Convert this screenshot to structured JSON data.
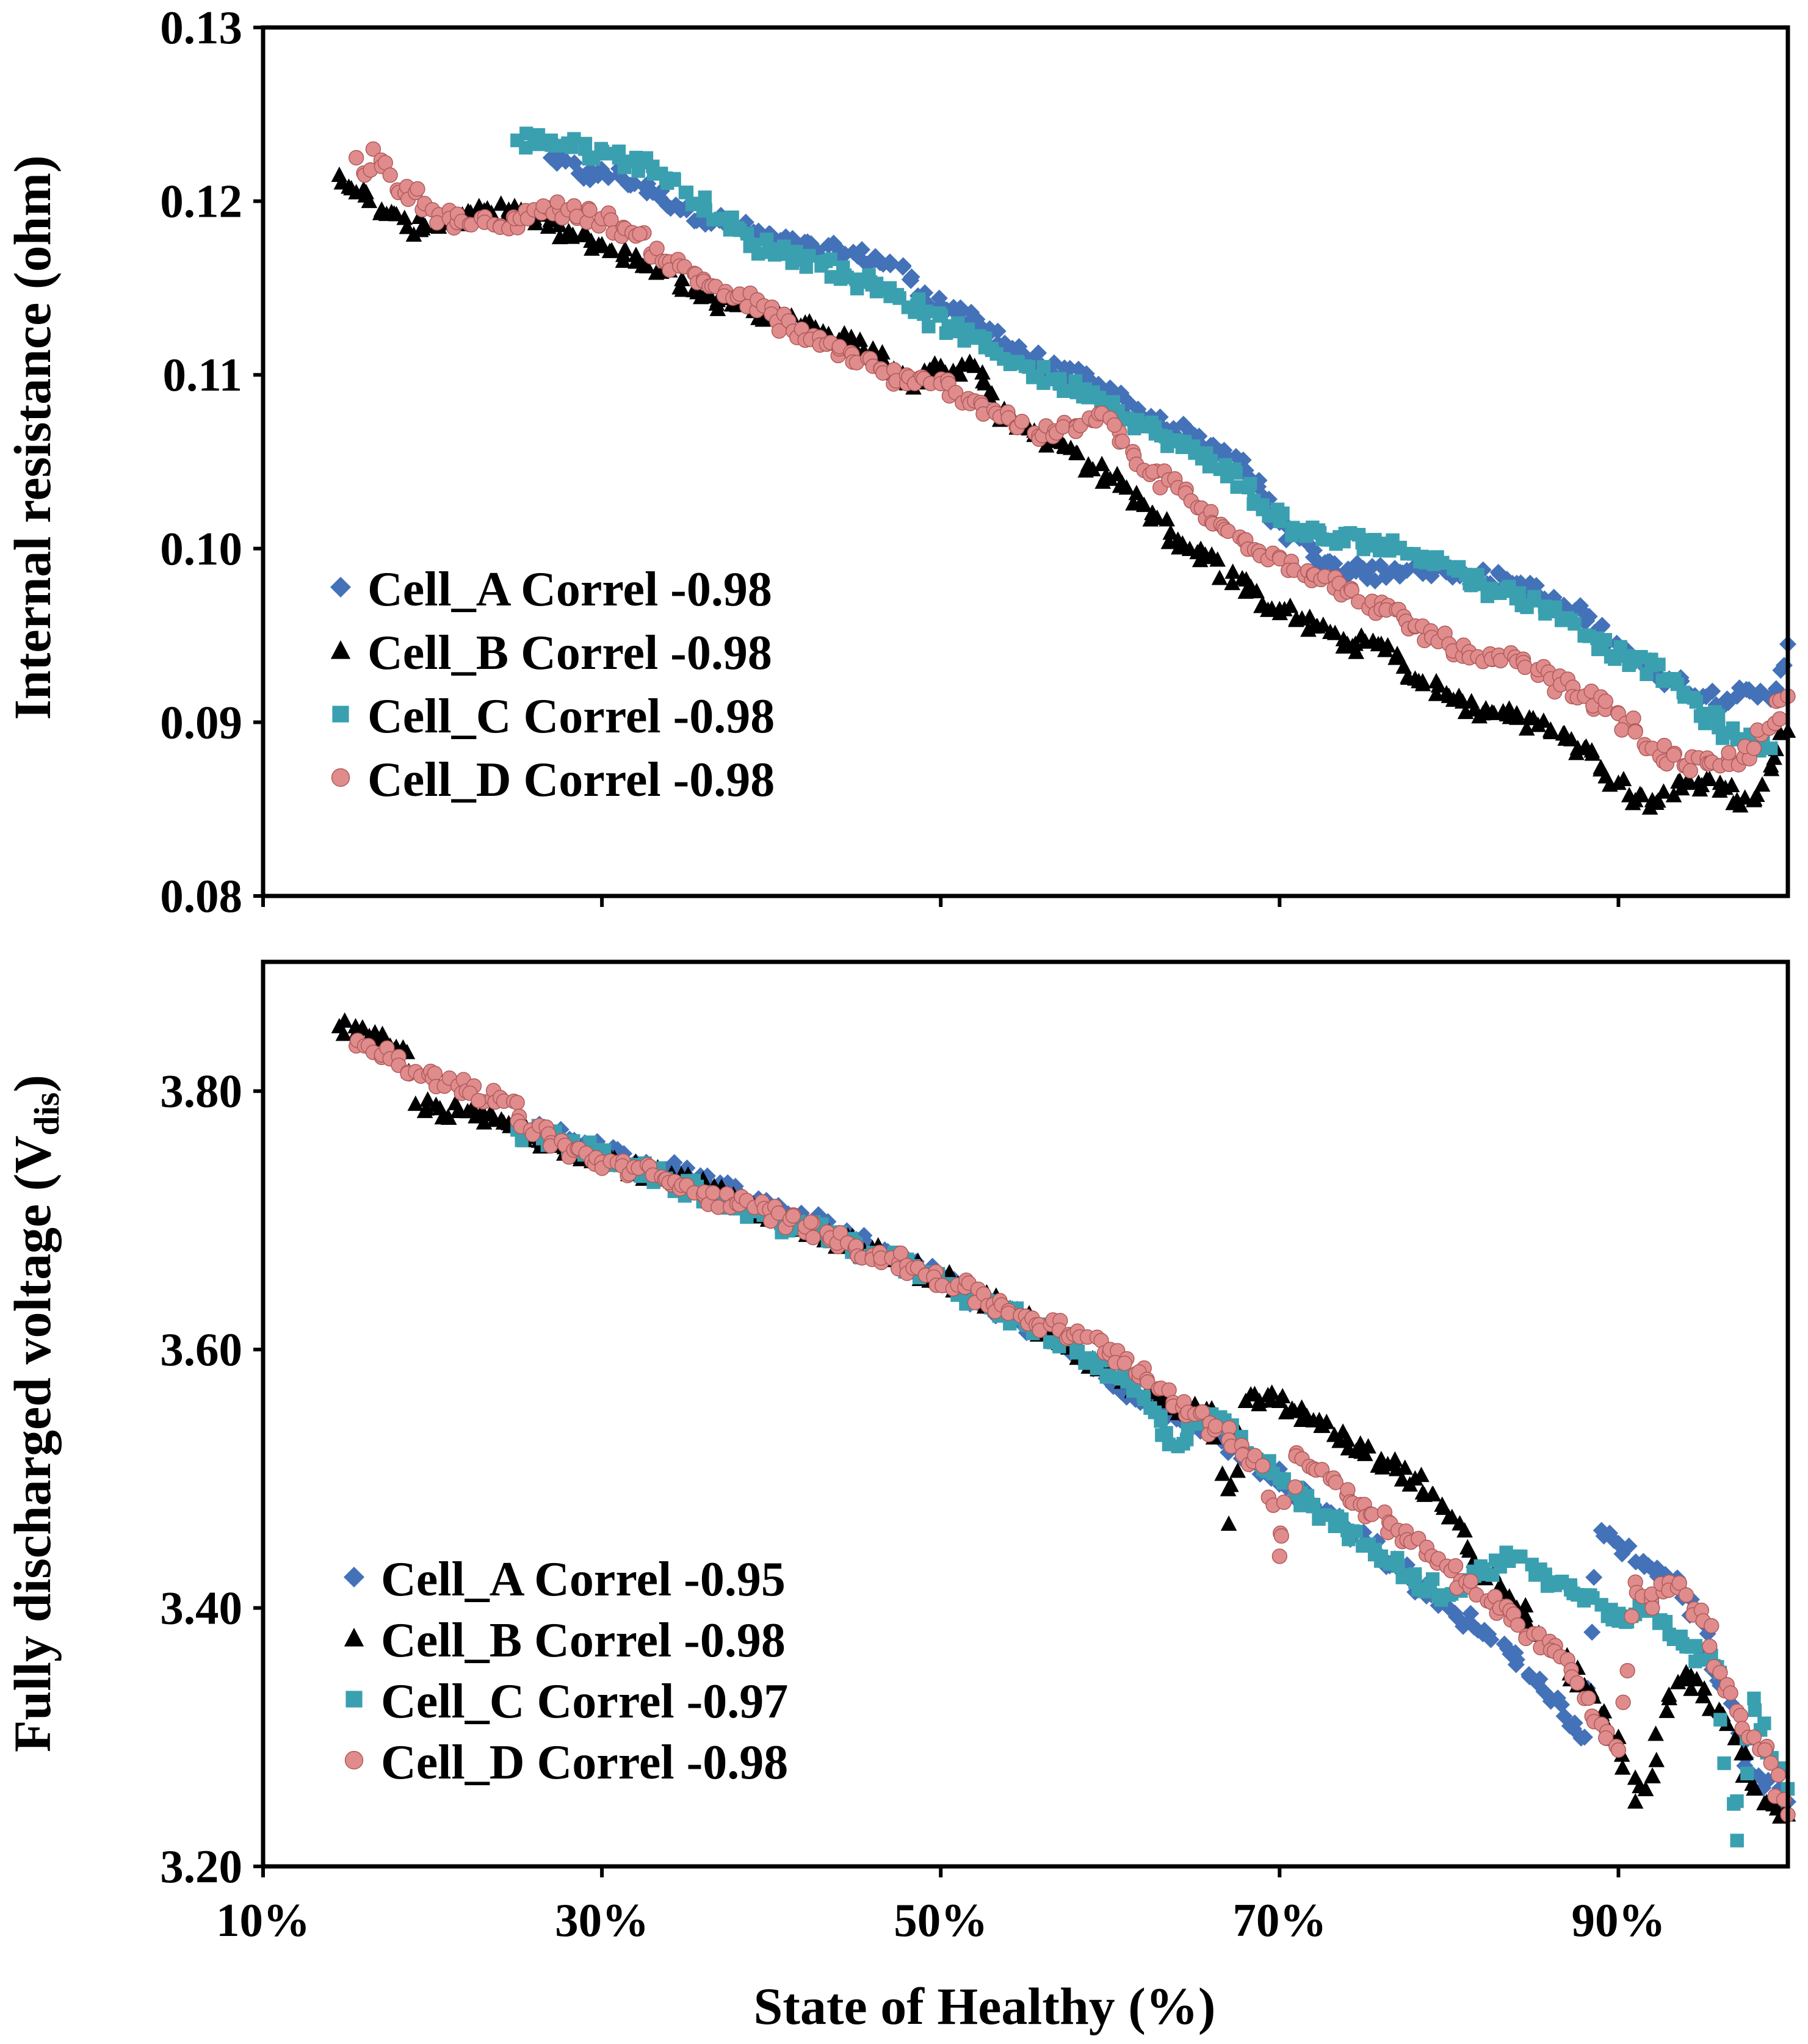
{
  "colors": {
    "Cell_A": "#4472B8",
    "Cell_B": "#000000",
    "Cell_C": "#3AA0B0",
    "Cell_D": "#E08C8C",
    "Cell_D_edge": "#B05A5A"
  },
  "chart_data": [
    {
      "type": "scatter",
      "xlabel": "",
      "ylabel": "Internal resistance (ohm)",
      "xlim": [
        10,
        100
      ],
      "ylim": [
        0.08,
        0.13
      ],
      "x_ticks": [
        10,
        30,
        50,
        70,
        90
      ],
      "y_ticks": [
        0.08,
        0.09,
        0.1,
        0.11,
        0.12,
        0.13
      ],
      "y_tick_labels": [
        "0.08",
        "0.09",
        "0.10",
        "0.11",
        "0.12",
        "0.13"
      ],
      "grid": false,
      "legend_position": "lower-left",
      "legend": [
        {
          "label": "Cell_A  Correl -0.98",
          "marker": "diamond",
          "color": "#4472B8"
        },
        {
          "label": "Cell_B  Correl -0.98",
          "marker": "triangle",
          "color": "#000000"
        },
        {
          "label": "Cell_C  Correl -0.98",
          "marker": "square",
          "color": "#3AA0B0"
        },
        {
          "label": "Cell_D  Correl -0.98",
          "marker": "circle",
          "color": "#E08C8C"
        }
      ],
      "series": [
        {
          "name": "Cell_A  Correl -0.98",
          "marker": "diamond",
          "x": [
            27,
            29,
            31,
            33,
            35,
            38,
            41,
            44,
            47,
            50,
            53,
            56,
            59,
            62,
            65,
            68,
            70,
            72,
            75,
            78,
            81,
            84,
            87,
            89,
            91,
            93,
            95,
            97,
            99,
            100
          ],
          "y": [
            0.1225,
            0.1215,
            0.1215,
            0.1205,
            0.1195,
            0.1185,
            0.1175,
            0.117,
            0.1165,
            0.114,
            0.1125,
            0.1105,
            0.1095,
            0.1075,
            0.1065,
            0.1045,
            0.1015,
            0.0995,
            0.0985,
            0.099,
            0.0985,
            0.098,
            0.0965,
            0.0955,
            0.0935,
            0.0925,
            0.0915,
            0.0915,
            0.0915,
            0.0945
          ]
        },
        {
          "name": "Cell_B  Correl -0.98",
          "marker": "triangle",
          "x": [
            14.5,
            15.5,
            17,
            18.5,
            24.5,
            26,
            28,
            30,
            32,
            34,
            36,
            38,
            40,
            42,
            44,
            46,
            48,
            50,
            52,
            54,
            56,
            58,
            60,
            62,
            64,
            66,
            68,
            70,
            72,
            74,
            76,
            78,
            80,
            82,
            84,
            86,
            88,
            90,
            91,
            92,
            94,
            96,
            97,
            98,
            99,
            100
          ],
          "y": [
            0.1215,
            0.1205,
            0.1195,
            0.1185,
            0.1195,
            0.119,
            0.118,
            0.1175,
            0.1165,
            0.116,
            0.1145,
            0.114,
            0.1135,
            0.113,
            0.112,
            0.1115,
            0.1095,
            0.1105,
            0.1105,
            0.1075,
            0.1065,
            0.1055,
            0.104,
            0.1025,
            0.1005,
            0.0995,
            0.0975,
            0.0965,
            0.0955,
            0.0945,
            0.0945,
            0.0925,
            0.0915,
            0.0905,
            0.0905,
            0.0895,
            0.0885,
            0.0865,
            0.0855,
            0.0855,
            0.0865,
            0.0865,
            0.0855,
            0.0855,
            0.0875,
            0.0895
          ]
        },
        {
          "name": "Cell_C  Correl -0.98",
          "marker": "square",
          "x": [
            25,
            27,
            29,
            31,
            33,
            35,
            37,
            39,
            41,
            43,
            45,
            47,
            49,
            51,
            53,
            55,
            57,
            59,
            61,
            63,
            65,
            67,
            69,
            71,
            73,
            75,
            77,
            79,
            81,
            83,
            85,
            87,
            89,
            91,
            93,
            95,
            97,
            99
          ],
          "y": [
            0.1235,
            0.1235,
            0.123,
            0.1225,
            0.122,
            0.1205,
            0.119,
            0.1175,
            0.117,
            0.1165,
            0.1155,
            0.115,
            0.1135,
            0.1125,
            0.1115,
            0.1105,
            0.1095,
            0.109,
            0.1075,
            0.1065,
            0.1055,
            0.1045,
            0.1025,
            0.101,
            0.1005,
            0.1005,
            0.1,
            0.0995,
            0.0985,
            0.0975,
            0.097,
            0.096,
            0.0945,
            0.0935,
            0.0925,
            0.0905,
            0.089,
            0.0885
          ]
        },
        {
          "name": "Cell_D  Correl -0.98",
          "marker": "circle",
          "x": [
            15.5,
            16,
            16.5,
            17,
            17.5,
            18,
            19,
            20,
            21,
            24,
            26,
            28,
            30,
            32,
            34,
            36,
            38,
            40,
            42,
            44,
            46,
            48,
            50,
            52,
            54,
            56,
            58,
            60,
            62,
            64,
            66,
            68,
            70,
            72,
            74,
            76,
            78,
            80,
            82,
            84,
            86,
            88,
            90,
            91,
            92,
            94,
            96,
            98,
            100
          ],
          "y": [
            0.1225,
            0.1215,
            0.123,
            0.122,
            0.1215,
            0.1205,
            0.1205,
            0.1195,
            0.119,
            0.1185,
            0.1195,
            0.1195,
            0.119,
            0.118,
            0.1165,
            0.1155,
            0.1145,
            0.1135,
            0.112,
            0.1115,
            0.1105,
            0.1095,
            0.1095,
            0.1085,
            0.1075,
            0.1065,
            0.107,
            0.1075,
            0.1045,
            0.1035,
            0.1015,
            0.1005,
            0.0995,
            0.0985,
            0.0975,
            0.0965,
            0.0955,
            0.0945,
            0.0935,
            0.0935,
            0.0925,
            0.0915,
            0.0905,
            0.0895,
            0.0885,
            0.0875,
            0.0875,
            0.0885,
            0.0915
          ]
        }
      ]
    },
    {
      "type": "scatter",
      "xlabel": "State of Healthy (%)",
      "ylabel_main": "Fully discharged voltage (V",
      "ylabel_sub": "dis",
      "ylabel_end": ")",
      "xlim": [
        10,
        100
      ],
      "ylim": [
        3.2,
        3.9
      ],
      "x_ticks": [
        10,
        30,
        50,
        70,
        90
      ],
      "x_tick_labels": [
        "10%",
        "30%",
        "50%",
        "70%",
        "90%"
      ],
      "y_ticks": [
        3.2,
        3.4,
        3.6,
        3.8
      ],
      "y_tick_labels": [
        "3.20",
        "3.40",
        "3.60",
        "3.80"
      ],
      "grid": false,
      "legend_position": "lower-left",
      "legend": [
        {
          "label": "Cell_A  Correl -0.95",
          "marker": "diamond",
          "color": "#4472B8"
        },
        {
          "label": "Cell_B  Correl -0.98",
          "marker": "triangle",
          "color": "#000000"
        },
        {
          "label": "Cell_C  Correl -0.97",
          "marker": "square",
          "color": "#3AA0B0"
        },
        {
          "label": "Cell_D  Correl -0.98",
          "marker": "circle",
          "color": "#E08C8C"
        }
      ],
      "series": [
        {
          "name": "Cell_A  Correl -0.95",
          "marker": "diamond",
          "x": [
            26,
            29,
            32,
            35,
            38,
            41,
            44,
            47,
            50,
            53,
            56,
            59,
            62,
            65,
            68,
            70,
            72,
            74,
            76,
            78,
            80,
            82,
            84,
            86,
            88,
            89,
            90,
            92,
            94,
            96,
            98,
            100
          ],
          "y": [
            3.77,
            3.76,
            3.745,
            3.735,
            3.72,
            3.705,
            3.69,
            3.67,
            3.655,
            3.63,
            3.615,
            3.585,
            3.56,
            3.545,
            3.515,
            3.5,
            3.48,
            3.46,
            3.44,
            3.42,
            3.4,
            3.38,
            3.36,
            3.33,
            3.3,
            3.46,
            3.45,
            3.43,
            3.41,
            3.34,
            3.27,
            3.25
          ]
        },
        {
          "name": "Cell_B  Correl -0.98",
          "marker": "triangle",
          "x": [
            14.5,
            15.5,
            16.5,
            17.5,
            18.5,
            19,
            24.5,
            27,
            30,
            33,
            36,
            39,
            42,
            45,
            48,
            51,
            54,
            57,
            60,
            63,
            66,
            67,
            68,
            70,
            72,
            74,
            76,
            78,
            80,
            82,
            84,
            86,
            88,
            90,
            91,
            92,
            93,
            94,
            96,
            98,
            100
          ],
          "y": [
            3.85,
            3.845,
            3.84,
            3.835,
            3.83,
            3.79,
            3.775,
            3.76,
            3.75,
            3.735,
            3.725,
            3.71,
            3.695,
            3.68,
            3.665,
            3.65,
            3.63,
            3.61,
            3.585,
            3.56,
            3.55,
            3.465,
            3.56,
            3.56,
            3.545,
            3.53,
            3.515,
            3.5,
            3.47,
            3.43,
            3.4,
            3.37,
            3.34,
            3.3,
            3.25,
            3.27,
            3.33,
            3.35,
            3.32,
            3.26,
            3.24
          ]
        },
        {
          "name": "Cell_C  Correl -0.97",
          "marker": "square",
          "x": [
            25,
            28,
            31,
            34,
            37,
            40,
            43,
            46,
            49,
            52,
            55,
            58,
            61,
            64,
            66,
            68,
            70,
            72,
            74,
            76,
            78,
            80,
            82,
            84,
            86,
            88,
            90,
            92,
            94,
            96,
            97,
            98,
            100
          ],
          "y": [
            3.77,
            3.76,
            3.745,
            3.73,
            3.715,
            3.7,
            3.69,
            3.675,
            3.66,
            3.64,
            3.62,
            3.6,
            3.575,
            3.525,
            3.55,
            3.52,
            3.5,
            3.48,
            3.46,
            3.44,
            3.42,
            3.41,
            3.43,
            3.44,
            3.42,
            3.41,
            3.39,
            3.4,
            3.37,
            3.35,
            3.22,
            3.33,
            3.26
          ]
        },
        {
          "name": "Cell_D  Correl -0.98",
          "marker": "circle",
          "x": [
            15.5,
            16,
            16.5,
            17,
            17.5,
            18,
            19,
            20,
            21,
            22,
            24,
            27,
            30,
            33,
            36,
            39,
            42,
            45,
            48,
            51,
            54,
            57,
            60,
            63,
            65,
            67,
            69,
            70,
            71,
            73,
            75,
            77,
            79,
            81,
            83,
            85,
            87,
            88,
            89,
            90,
            91,
            92,
            93,
            94,
            95,
            96,
            97,
            98,
            99,
            100
          ],
          "y": [
            3.835,
            3.835,
            3.83,
            3.828,
            3.825,
            3.82,
            3.815,
            3.81,
            3.81,
            3.8,
            3.795,
            3.76,
            3.745,
            3.735,
            3.72,
            3.71,
            3.695,
            3.68,
            3.665,
            3.65,
            3.63,
            3.615,
            3.6,
            3.57,
            3.55,
            3.53,
            3.51,
            3.44,
            3.52,
            3.5,
            3.48,
            3.46,
            3.44,
            3.42,
            3.4,
            3.38,
            3.36,
            3.33,
            3.31,
            3.29,
            3.42,
            3.4,
            3.42,
            3.41,
            3.39,
            3.35,
            3.32,
            3.3,
            3.28,
            3.24
          ]
        }
      ]
    }
  ]
}
